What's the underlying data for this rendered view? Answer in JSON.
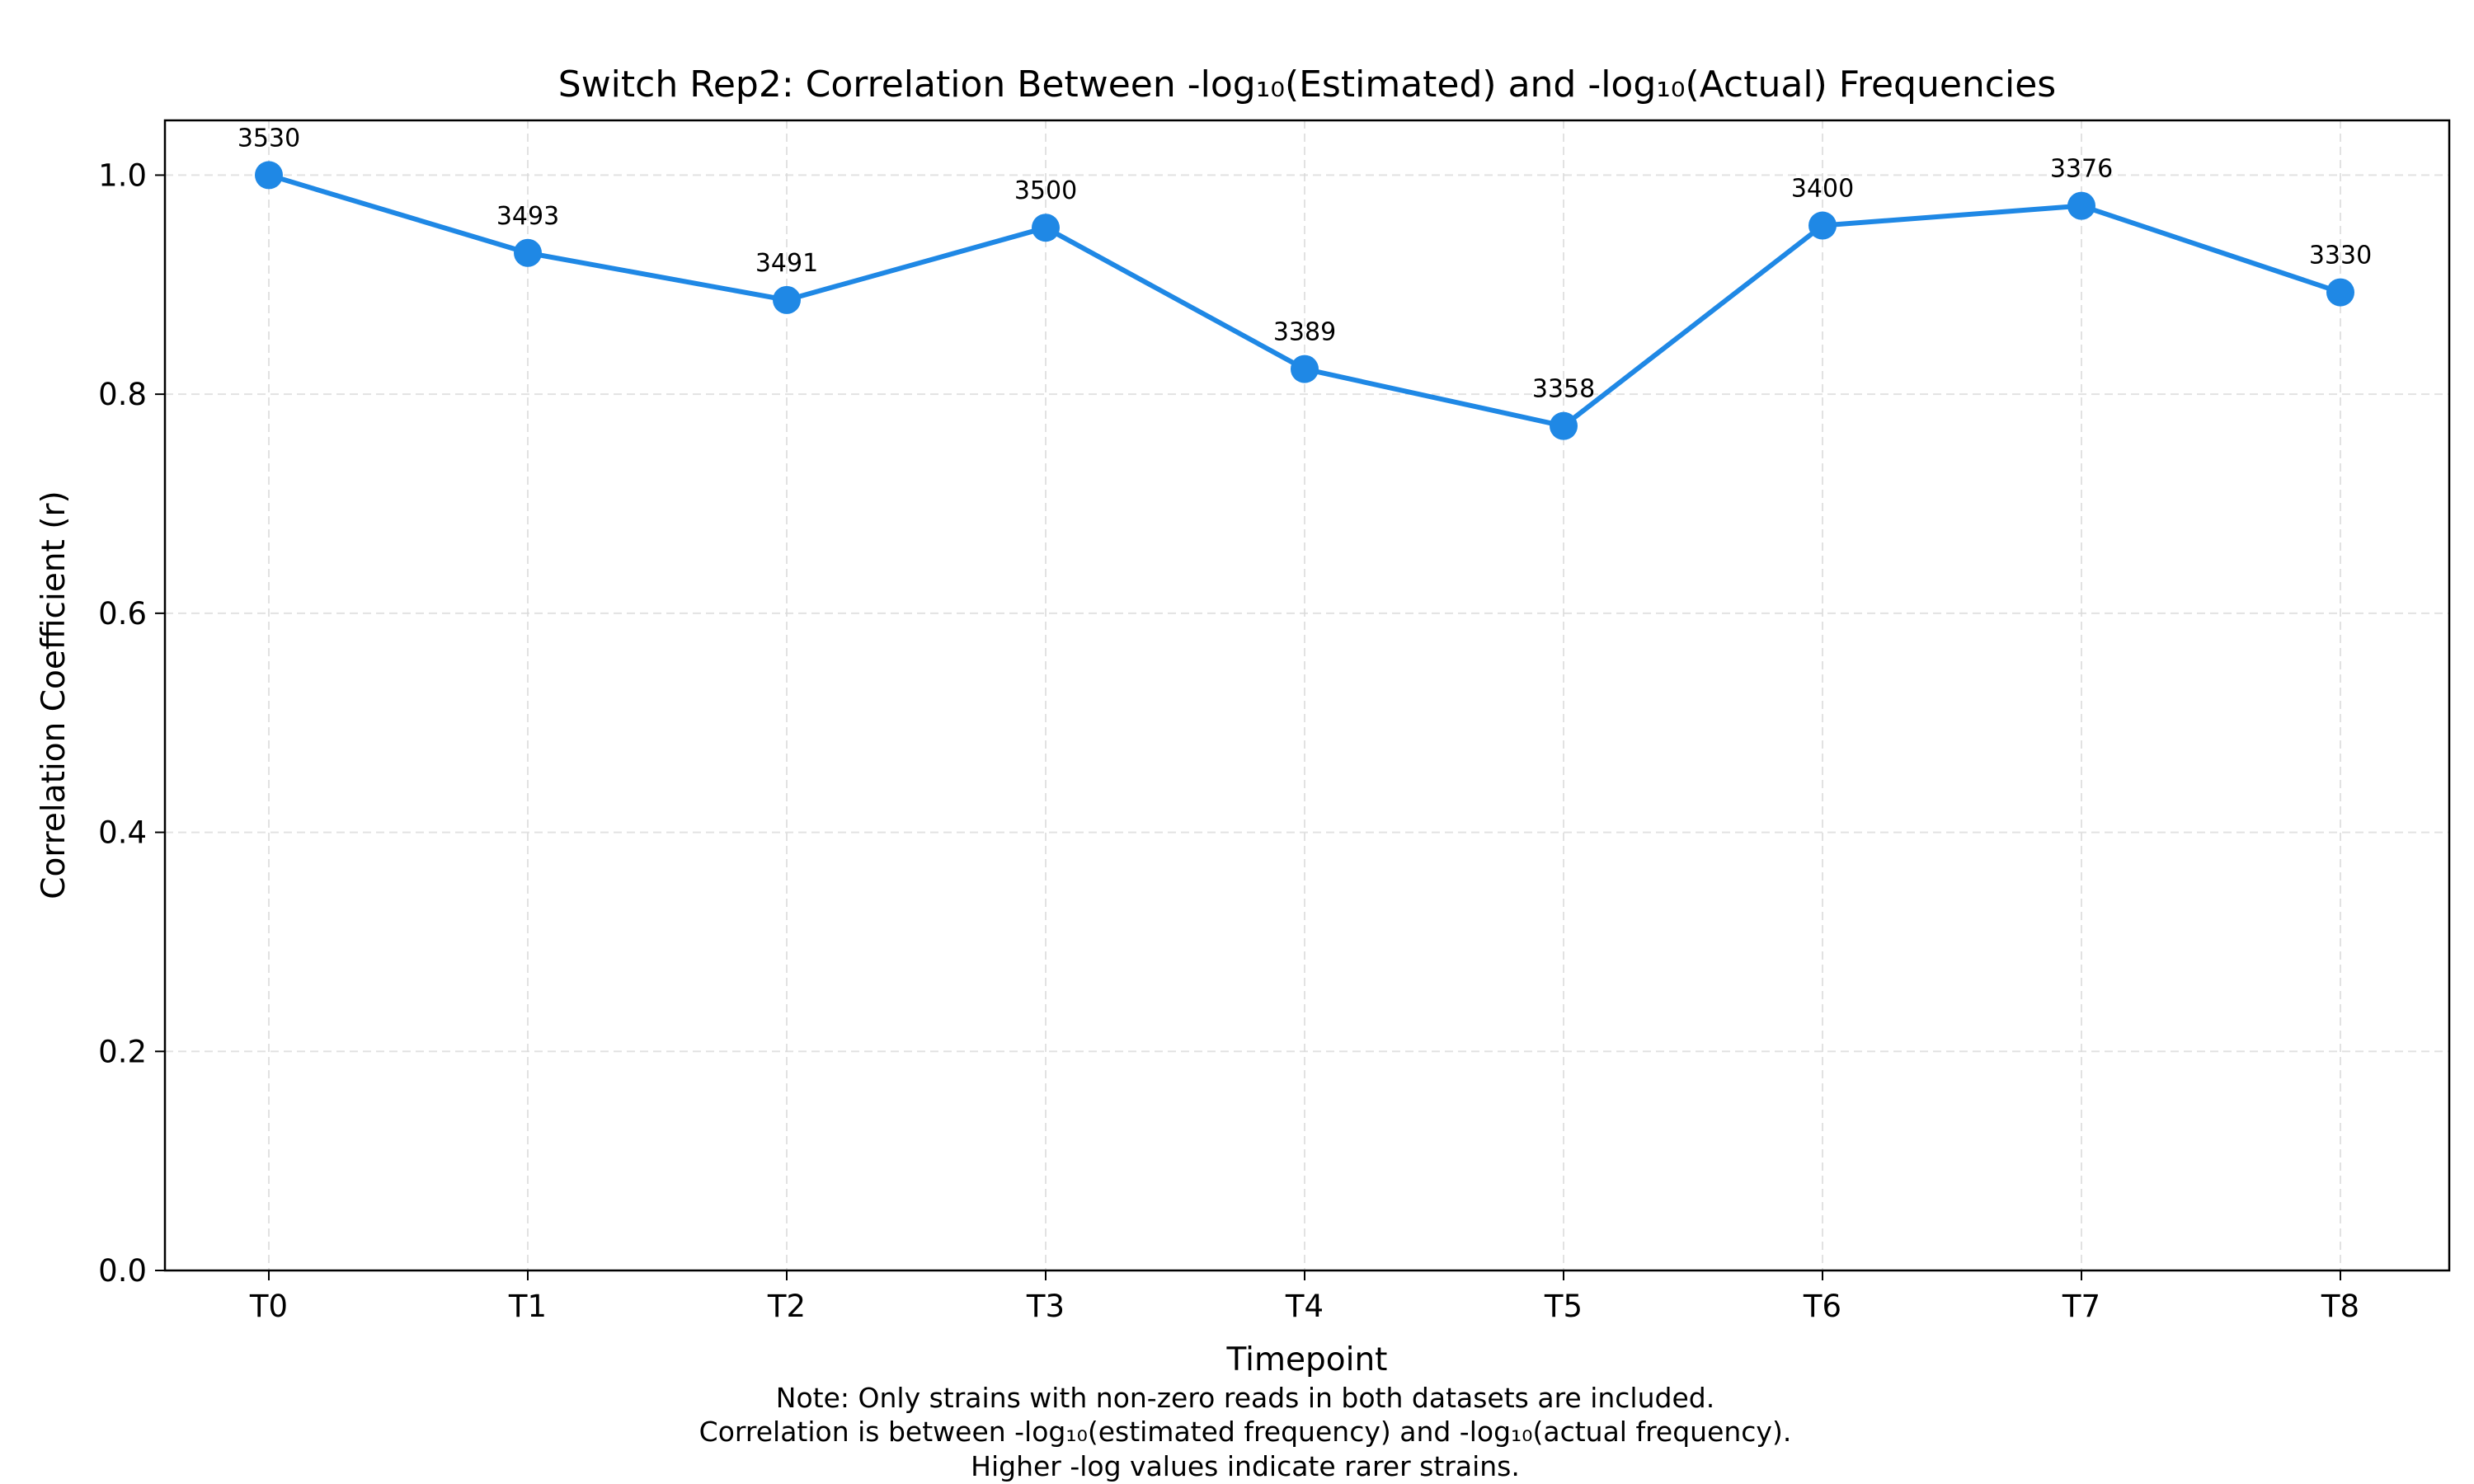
{
  "chart_data": {
    "type": "line",
    "title": "Switch Rep2: Correlation Between -log₁₀(Estimated) and -log₁₀(Actual) Frequencies",
    "xlabel": "Timepoint",
    "ylabel": "Correlation Coefficient (r)",
    "categories": [
      "T0",
      "T1",
      "T2",
      "T3",
      "T4",
      "T5",
      "T6",
      "T7",
      "T8"
    ],
    "ylim": [
      0,
      1.05
    ],
    "yticks": [
      0.0,
      0.2,
      0.4,
      0.6,
      0.8,
      1.0
    ],
    "ytick_labels": [
      "0.0",
      "0.2",
      "0.4",
      "0.6",
      "0.8",
      "1.0"
    ],
    "grid": true,
    "color": "#1f88e5",
    "series": [
      {
        "values": [
          1.0,
          0.929,
          0.886,
          0.952,
          0.823,
          0.771,
          0.954,
          0.972,
          0.893
        ],
        "point_labels": [
          "3530",
          "3493",
          "3491",
          "3500",
          "3389",
          "3358",
          "3400",
          "3376",
          "3330"
        ]
      }
    ],
    "notes": [
      "Note: Only strains with non-zero reads in both datasets are included.",
      "Correlation is between -log₁₀(estimated frequency) and -log₁₀(actual frequency).",
      "Higher -log values indicate rarer strains."
    ]
  }
}
